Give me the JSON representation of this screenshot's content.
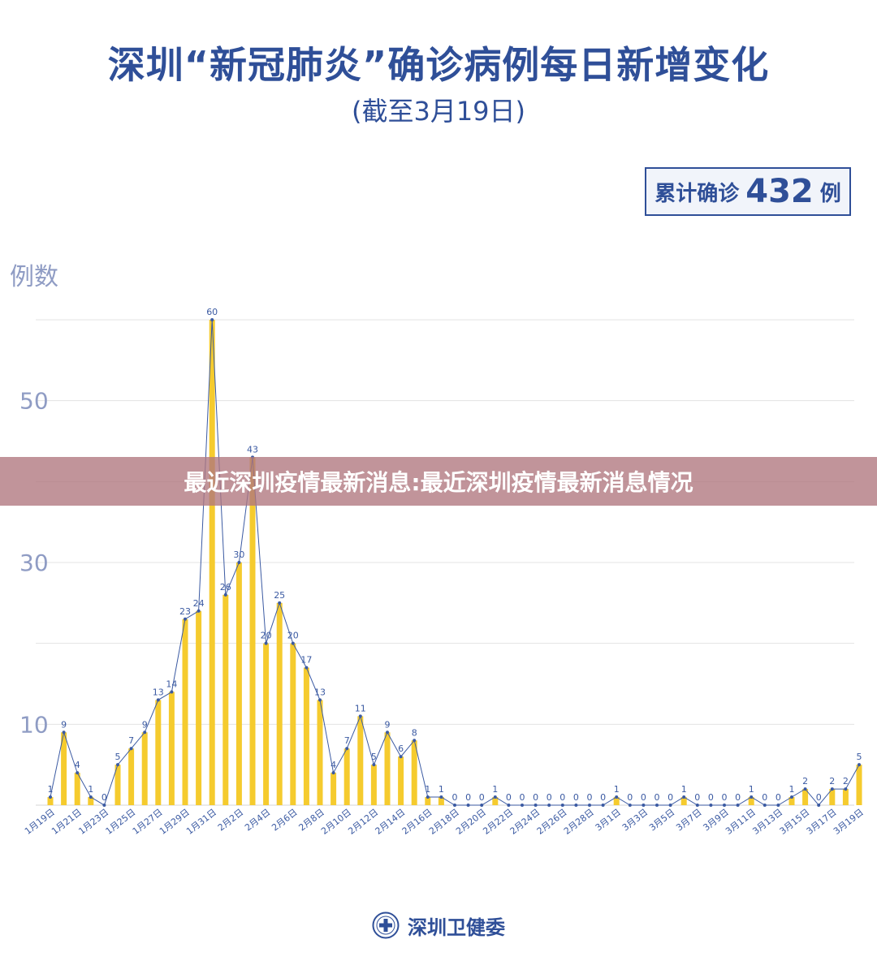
{
  "header": {
    "title": "深圳“新冠肺炎”确诊病例每日新增变化",
    "subtitle": "(截至3月19日)"
  },
  "total_box": {
    "prefix": "累计确诊",
    "value": "432",
    "suffix": "例"
  },
  "banner": {
    "text": "最近深圳疫情最新消息:最近深圳疫情最新消息情况"
  },
  "footer": {
    "text": "深圳卫健委",
    "logo_icon": "health-commission-emblem-icon"
  },
  "colors": {
    "bar": "#f5cb2e",
    "line": "#3b5aa2",
    "text": "#2f4f98",
    "axis_label": "#8f9cc4",
    "grid": "#e3e3e3"
  },
  "chart_data": {
    "type": "bar",
    "ylabel": "例数",
    "ylim": [
      0,
      60
    ],
    "yticks": [
      10,
      30,
      50
    ],
    "grid": true,
    "x_tick_labels": [
      "1月19日",
      "1月21日",
      "1月23日",
      "1月25日",
      "1月27日",
      "1月29日",
      "1月31日",
      "2月2日",
      "2月4日",
      "2月6日",
      "2月8日",
      "2月10日",
      "2月12日",
      "2月14日",
      "2月16日",
      "2月18日",
      "2月20日",
      "2月22日",
      "2月24日",
      "2月26日",
      "2月28日",
      "3月1日",
      "3月3日",
      "3月5日",
      "3月7日",
      "3月9日",
      "3月11日",
      "3月13日",
      "3月15日",
      "3月17日",
      "3月19日"
    ],
    "values": [
      1,
      9,
      4,
      1,
      0,
      5,
      7,
      9,
      13,
      14,
      23,
      24,
      60,
      26,
      30,
      43,
      20,
      25,
      20,
      17,
      13,
      4,
      7,
      11,
      5,
      9,
      6,
      8,
      1,
      1,
      0,
      0,
      0,
      1,
      0,
      0,
      0,
      0,
      0,
      0,
      0,
      0,
      1,
      0,
      0,
      0,
      0,
      1,
      0,
      0,
      0,
      0,
      1,
      0,
      0,
      1,
      2,
      0,
      2,
      2,
      5
    ]
  }
}
